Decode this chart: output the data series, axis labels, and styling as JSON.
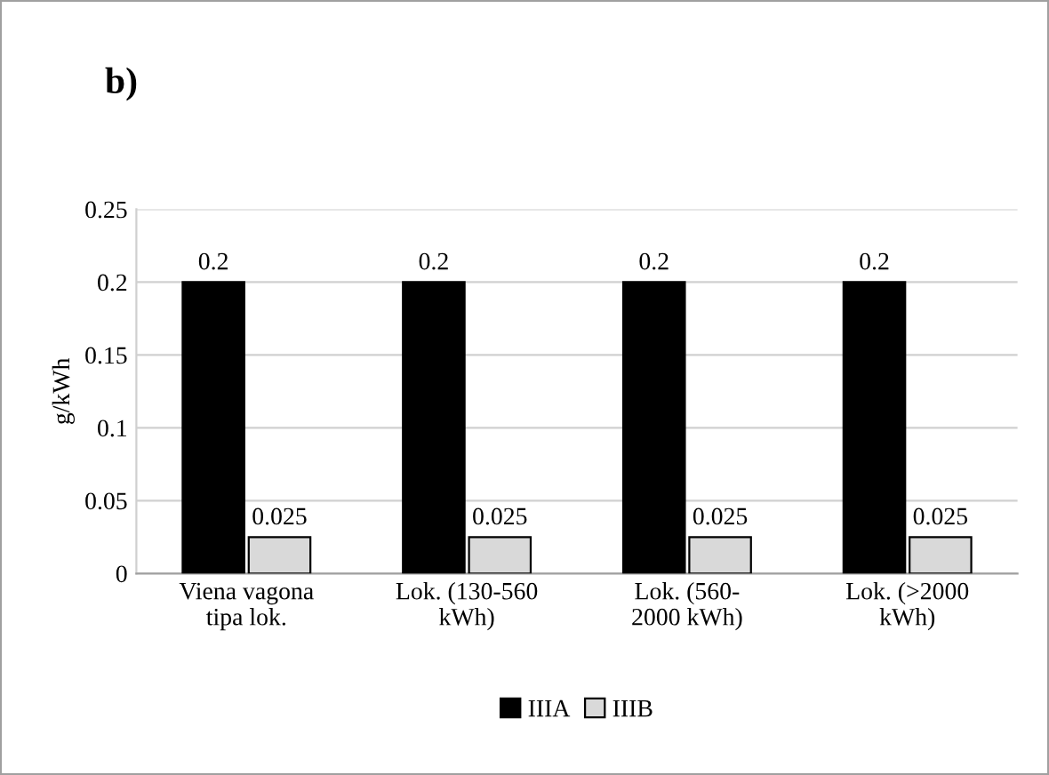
{
  "chart_data": {
    "type": "bar",
    "title": "b)",
    "ylabel": "g/kWh",
    "categories": [
      "Viena vagona\ntipa lok.",
      "Lok. (130-560\nkWh)",
      "Lok. (560-\n2000 kWh)",
      "Lok. (>2000\nkWh)"
    ],
    "series": [
      {
        "name": "IIIA",
        "color": "#000000",
        "values": [
          0.2,
          0.2,
          0.2,
          0.2
        ]
      },
      {
        "name": "IIIB",
        "color": "#d9d9d9",
        "values": [
          0.025,
          0.025,
          0.025,
          0.025
        ]
      }
    ],
    "ylim": [
      0,
      0.25
    ],
    "yticks": [
      0,
      0.05,
      0.1,
      0.15,
      0.2,
      0.25
    ],
    "grid": "y",
    "legend": "bottom",
    "data_labels": true
  }
}
